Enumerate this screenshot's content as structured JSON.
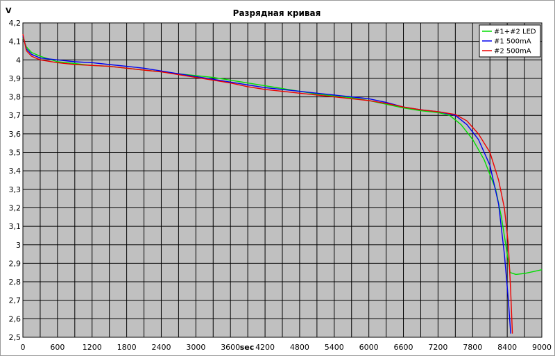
{
  "chart_data": {
    "type": "line",
    "title": "Разрядная кривая",
    "xlabel": "sec",
    "ylabel": "V",
    "xlim": [
      0,
      9000
    ],
    "ylim": [
      2.5,
      4.2
    ],
    "x_ticks": [
      0,
      600,
      1200,
      1800,
      2400,
      3000,
      3600,
      4200,
      4800,
      5400,
      6000,
      6600,
      7200,
      7800,
      8400,
      9000
    ],
    "x_tick_labels": [
      "0",
      "600",
      "1200",
      "1800",
      "2400",
      "3000",
      "3600",
      "4200",
      "4800",
      "5400",
      "6000",
      "6600",
      "7200",
      "7800",
      "8400",
      "9000"
    ],
    "x_minor_step": 300,
    "y_ticks": [
      2.5,
      2.6,
      2.7,
      2.8,
      2.9,
      3.0,
      3.1,
      3.2,
      3.3,
      3.4,
      3.5,
      3.6,
      3.7,
      3.8,
      3.9,
      4.0,
      4.1,
      4.2
    ],
    "y_tick_labels": [
      "2,5",
      "2,6",
      "2,7",
      "2,8",
      "2,9",
      "3",
      "3,1",
      "3,2",
      "3,3",
      "3,4",
      "3,5",
      "3,6",
      "3,7",
      "3,8",
      "3,9",
      "4",
      "4,1",
      "4,2"
    ],
    "grid": true,
    "legend_position": "top-right",
    "plot_background": "#c0c0c0",
    "series": [
      {
        "name": "#1+#2 LED",
        "color": "#00dd00",
        "points": [
          [
            0,
            4.12
          ],
          [
            60,
            4.07
          ],
          [
            150,
            4.04
          ],
          [
            300,
            4.02
          ],
          [
            600,
            3.99
          ],
          [
            900,
            3.98
          ],
          [
            1200,
            3.97
          ],
          [
            1500,
            3.965
          ],
          [
            1800,
            3.955
          ],
          [
            2100,
            3.945
          ],
          [
            2400,
            3.935
          ],
          [
            2700,
            3.925
          ],
          [
            3000,
            3.915
          ],
          [
            3300,
            3.905
          ],
          [
            3600,
            3.89
          ],
          [
            3900,
            3.875
          ],
          [
            4200,
            3.86
          ],
          [
            4500,
            3.845
          ],
          [
            4800,
            3.83
          ],
          [
            5100,
            3.815
          ],
          [
            5400,
            3.805
          ],
          [
            5700,
            3.795
          ],
          [
            6000,
            3.78
          ],
          [
            6300,
            3.76
          ],
          [
            6600,
            3.74
          ],
          [
            6900,
            3.725
          ],
          [
            7200,
            3.715
          ],
          [
            7400,
            3.7
          ],
          [
            7600,
            3.65
          ],
          [
            7800,
            3.57
          ],
          [
            8000,
            3.46
          ],
          [
            8200,
            3.3
          ],
          [
            8300,
            3.15
          ],
          [
            8400,
            2.95
          ],
          [
            8450,
            2.85
          ],
          [
            8550,
            2.84
          ],
          [
            8700,
            2.845
          ],
          [
            8850,
            2.855
          ],
          [
            9000,
            2.865
          ]
        ]
      },
      {
        "name": "#1 500mA",
        "color": "#0000ee",
        "points": [
          [
            0,
            4.13
          ],
          [
            60,
            4.06
          ],
          [
            150,
            4.03
          ],
          [
            300,
            4.01
          ],
          [
            600,
            4.0
          ],
          [
            900,
            3.99
          ],
          [
            1200,
            3.985
          ],
          [
            1500,
            3.975
          ],
          [
            1800,
            3.965
          ],
          [
            2100,
            3.955
          ],
          [
            2400,
            3.94
          ],
          [
            2700,
            3.925
          ],
          [
            3000,
            3.91
          ],
          [
            3300,
            3.895
          ],
          [
            3600,
            3.88
          ],
          [
            3900,
            3.865
          ],
          [
            4200,
            3.85
          ],
          [
            4500,
            3.84
          ],
          [
            4800,
            3.83
          ],
          [
            5100,
            3.82
          ],
          [
            5400,
            3.81
          ],
          [
            5700,
            3.8
          ],
          [
            6000,
            3.79
          ],
          [
            6300,
            3.77
          ],
          [
            6600,
            3.745
          ],
          [
            6900,
            3.73
          ],
          [
            7200,
            3.72
          ],
          [
            7500,
            3.7
          ],
          [
            7700,
            3.65
          ],
          [
            7900,
            3.57
          ],
          [
            8100,
            3.43
          ],
          [
            8250,
            3.22
          ],
          [
            8350,
            2.95
          ],
          [
            8420,
            2.7
          ],
          [
            8460,
            2.52
          ]
        ]
      },
      {
        "name": "#2 500mA",
        "color": "#ee0000",
        "points": [
          [
            0,
            4.14
          ],
          [
            60,
            4.05
          ],
          [
            150,
            4.02
          ],
          [
            300,
            4.0
          ],
          [
            600,
            3.985
          ],
          [
            900,
            3.975
          ],
          [
            1200,
            3.97
          ],
          [
            1500,
            3.965
          ],
          [
            1800,
            3.955
          ],
          [
            2100,
            3.945
          ],
          [
            2400,
            3.935
          ],
          [
            2700,
            3.92
          ],
          [
            3000,
            3.905
          ],
          [
            3300,
            3.89
          ],
          [
            3600,
            3.875
          ],
          [
            3900,
            3.855
          ],
          [
            4200,
            3.84
          ],
          [
            4500,
            3.83
          ],
          [
            4800,
            3.82
          ],
          [
            5100,
            3.81
          ],
          [
            5400,
            3.8
          ],
          [
            5700,
            3.79
          ],
          [
            6000,
            3.78
          ],
          [
            6300,
            3.765
          ],
          [
            6600,
            3.745
          ],
          [
            6900,
            3.73
          ],
          [
            7200,
            3.72
          ],
          [
            7500,
            3.705
          ],
          [
            7700,
            3.67
          ],
          [
            7900,
            3.6
          ],
          [
            8100,
            3.5
          ],
          [
            8250,
            3.35
          ],
          [
            8350,
            3.2
          ],
          [
            8420,
            3.0
          ],
          [
            8460,
            2.75
          ],
          [
            8490,
            2.52
          ]
        ]
      }
    ]
  }
}
